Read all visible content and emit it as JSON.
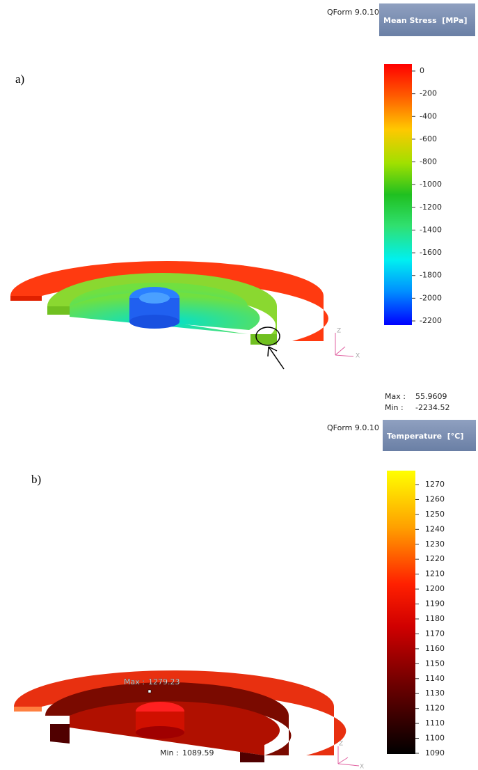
{
  "panels": [
    {
      "label": "a)",
      "software": "QForm 9.0.10",
      "legend": {
        "title": "Mean Stress  [MPa]",
        "ticks": [
          0,
          -200,
          -400,
          -600,
          -800,
          -1000,
          -1200,
          -1400,
          -1600,
          -1800,
          -2000,
          -2200
        ]
      },
      "max_label": "Max :",
      "max": 55.9609,
      "min_label": "Min :",
      "min": -2234.52,
      "axes": [
        "Z",
        "X"
      ]
    },
    {
      "label": "b)",
      "software": "QForm 9.0.10",
      "legend": {
        "title": "Temperature  [°C]",
        "ticks": [
          1270,
          1260,
          1250,
          1240,
          1230,
          1220,
          1210,
          1200,
          1190,
          1180,
          1170,
          1160,
          1150,
          1140,
          1130,
          1120,
          1110,
          1100,
          1090
        ]
      },
      "max_label": "Max :",
      "max": 1279.23,
      "min_label": "Min :",
      "min": 1089.59,
      "axes": [
        "Z",
        "X"
      ]
    }
  ]
}
